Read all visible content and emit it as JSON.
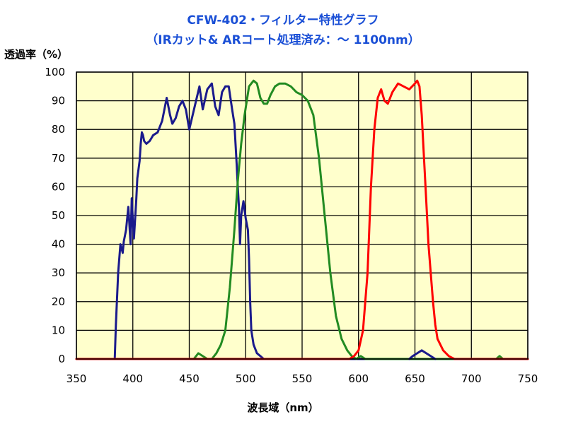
{
  "title": {
    "line1": "CFW-402・フィルター特性グラフ",
    "line2": "（IRカット& ARコート処理済み：～ 1100nm）"
  },
  "chart_data": {
    "type": "line",
    "ylabel": "透過率（%）",
    "xlabel": "波長域（nm）",
    "xlim": [
      350,
      750
    ],
    "ylim": [
      0,
      100
    ],
    "xticks": [
      350,
      400,
      450,
      500,
      550,
      600,
      650,
      700,
      750
    ],
    "yticks": [
      0,
      10,
      20,
      30,
      40,
      50,
      60,
      70,
      80,
      90,
      100
    ],
    "grid": true,
    "background": "#ffffcc",
    "series": [
      {
        "color": "#1a1a8c",
        "x": [
          350,
          384,
          385,
          387,
          389,
          391,
          392,
          394,
          396,
          398,
          399,
          400,
          401,
          403,
          404,
          406,
          407,
          408,
          409,
          410,
          412,
          415,
          418,
          422,
          426,
          430,
          433,
          435,
          438,
          441,
          444,
          447,
          450,
          453,
          456,
          459,
          462,
          466,
          470,
          473,
          476,
          479,
          482,
          485,
          488,
          490,
          491,
          492,
          493,
          494,
          495,
          496,
          498,
          500,
          502,
          503,
          504,
          505,
          507,
          510,
          513,
          516,
          520,
          750
        ],
        "y": [
          0,
          0,
          12,
          30,
          40,
          37,
          41,
          45,
          53,
          40,
          56,
          48,
          42,
          55,
          63,
          69,
          75,
          79,
          78,
          76,
          75,
          76,
          78,
          79,
          83,
          91,
          85,
          82,
          84,
          88,
          90,
          87,
          80,
          85,
          90,
          95,
          87,
          94,
          96,
          88,
          85,
          93,
          95,
          95,
          87,
          82,
          75,
          68,
          60,
          53,
          40,
          50,
          55,
          49,
          45,
          35,
          20,
          10,
          5,
          2,
          1,
          0,
          0,
          0
        ]
      },
      {
        "color": "#228b22",
        "x": [
          350,
          454,
          458,
          462,
          466,
          470,
          474,
          478,
          482,
          486,
          490,
          493,
          496,
          499,
          501,
          503,
          505,
          507,
          510,
          513,
          516,
          519,
          522,
          526,
          530,
          535,
          540,
          545,
          550,
          555,
          560,
          565,
          570,
          575,
          580,
          585,
          590,
          594,
          598,
          602,
          606,
          610,
          615,
          620,
          630,
          640,
          700,
          722,
          725,
          728,
          750
        ],
        "y": [
          0,
          0,
          2,
          1,
          0,
          0,
          2,
          5,
          10,
          25,
          45,
          62,
          75,
          85,
          90,
          95,
          96,
          97,
          96,
          91,
          89,
          89,
          92,
          95,
          96,
          96,
          95,
          93,
          92,
          90,
          85,
          70,
          50,
          30,
          15,
          7,
          3,
          1,
          0,
          1,
          0,
          0,
          0,
          0,
          0,
          0,
          0,
          0,
          1,
          0,
          0
        ]
      },
      {
        "color": "#ff0000",
        "x": [
          350,
          588,
          592,
          596,
          600,
          604,
          608,
          611,
          614,
          617,
          620,
          623,
          626,
          630,
          635,
          640,
          645,
          650,
          652,
          654,
          656,
          658,
          660,
          662,
          664,
          666,
          668,
          670,
          675,
          680,
          685,
          690,
          700,
          750
        ],
        "y": [
          0,
          0,
          0,
          1,
          3,
          10,
          30,
          60,
          80,
          91,
          94,
          90,
          89,
          93,
          96,
          95,
          94,
          96,
          97,
          95,
          85,
          70,
          55,
          40,
          30,
          20,
          12,
          7,
          3,
          1,
          0,
          0,
          0,
          0
        ]
      },
      {
        "color": "#1a1a8c",
        "x": [
          645,
          648,
          652,
          656,
          660,
          664,
          668
        ],
        "y": [
          0,
          1,
          2,
          3,
          2,
          1,
          0
        ]
      }
    ]
  }
}
